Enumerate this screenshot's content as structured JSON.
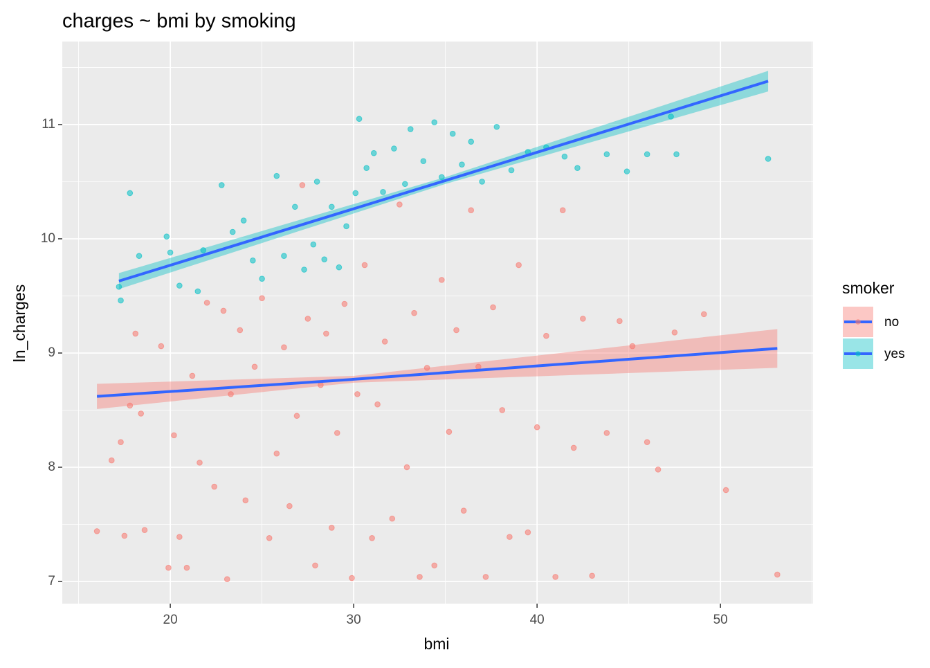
{
  "chart_data": {
    "type": "scatter",
    "title": "charges ~ bmi by smoking",
    "xlabel": "bmi",
    "ylabel": "ln_charges",
    "legend_title": "smoker",
    "legend": "right",
    "grid": true,
    "xlim": [
      14.11,
      55.05
    ],
    "xticks": [
      20,
      30,
      40,
      50
    ],
    "xminor": [
      15,
      25,
      35,
      45,
      55
    ],
    "ylim": [
      6.806,
      11.727
    ],
    "yticks": [
      7,
      8,
      9,
      10,
      11
    ],
    "yminor": [
      7.5,
      8.5,
      9.5,
      10.5,
      11.5
    ],
    "series": [
      {
        "name": "no",
        "color": "#F8766D",
        "x": [
          16,
          16.8,
          17.3,
          17.5,
          17.8,
          18.1,
          18.4,
          18.6,
          19.5,
          19.9,
          20.2,
          20.5,
          20.9,
          21.2,
          21.6,
          22,
          22.4,
          22.9,
          23.1,
          23.3,
          23.8,
          24.1,
          24.6,
          25,
          25.4,
          25.8,
          26.2,
          26.5,
          26.9,
          27.2,
          27.5,
          27.9,
          28.2,
          28.5,
          28.8,
          29.1,
          29.5,
          29.9,
          30.2,
          30.6,
          31,
          31.3,
          31.7,
          32.1,
          32.5,
          32.9,
          33.3,
          33.6,
          34,
          34.4,
          34.8,
          35.2,
          35.6,
          36,
          36.4,
          36.8,
          37.2,
          37.6,
          38.1,
          38.5,
          39,
          39.5,
          40,
          40.5,
          41,
          41.4,
          42,
          42.5,
          43,
          43.8,
          44.5,
          45.2,
          46,
          46.6,
          47.5,
          49.1,
          50.3,
          53.1
        ],
        "values": [
          7.44,
          8.06,
          8.22,
          7.4,
          8.54,
          9.17,
          8.47,
          7.45,
          9.06,
          7.12,
          8.28,
          7.39,
          7.12,
          8.8,
          8.04,
          9.44,
          7.83,
          9.37,
          7.02,
          8.64,
          9.2,
          7.71,
          8.88,
          9.48,
          7.38,
          8.12,
          9.05,
          7.66,
          8.45,
          10.47,
          9.3,
          7.14,
          8.72,
          9.17,
          7.47,
          8.3,
          9.43,
          7.03,
          8.64,
          9.77,
          7.38,
          8.55,
          9.1,
          7.55,
          10.3,
          8.0,
          9.35,
          7.04,
          8.87,
          7.14,
          9.64,
          8.31,
          9.2,
          7.62,
          10.25,
          8.88,
          7.04,
          9.4,
          8.5,
          7.39,
          9.77,
          7.43,
          8.35,
          9.15,
          7.04,
          10.25,
          8.17,
          9.3,
          7.05,
          8.3,
          9.28,
          9.06,
          8.22,
          7.98,
          9.18,
          9.34,
          7.8,
          7.06
        ]
      },
      {
        "name": "yes",
        "color": "#00BFC4",
        "x": [
          17.2,
          17.3,
          17.8,
          18.3,
          19.8,
          20,
          20.5,
          21.5,
          21.8,
          22.8,
          23.4,
          24,
          24.5,
          25,
          25.8,
          26.2,
          26.8,
          27.3,
          27.8,
          28,
          28.4,
          28.8,
          29.2,
          29.6,
          30.1,
          30.3,
          30.7,
          31.1,
          31.6,
          32.2,
          32.8,
          33.1,
          33.8,
          34.4,
          34.8,
          35.4,
          35.9,
          36.4,
          37,
          37.8,
          38.6,
          39.5,
          40.5,
          41.5,
          42.2,
          43.8,
          44.9,
          46,
          47.3,
          47.6,
          52.6
        ],
        "values": [
          9.58,
          9.46,
          10.4,
          9.85,
          10.02,
          9.88,
          9.59,
          9.54,
          9.9,
          10.47,
          10.06,
          10.16,
          9.81,
          9.65,
          10.55,
          9.85,
          10.28,
          9.73,
          9.95,
          10.5,
          9.82,
          10.28,
          9.75,
          10.11,
          10.4,
          11.05,
          10.62,
          10.75,
          10.41,
          10.79,
          10.48,
          10.96,
          10.68,
          11.02,
          10.54,
          10.92,
          10.65,
          10.85,
          10.5,
          10.98,
          10.6,
          10.76,
          10.8,
          10.72,
          10.62,
          10.74,
          10.59,
          10.74,
          11.07,
          10.74,
          10.7
        ]
      }
    ],
    "fits": [
      {
        "series": 0,
        "color": "#3366FF",
        "x": [
          16,
          30,
          53.1
        ],
        "values": [
          8.62,
          8.77,
          9.04
        ],
        "lower": [
          8.51,
          8.74,
          8.87
        ],
        "upper": [
          8.73,
          8.8,
          9.21
        ]
      },
      {
        "series": 1,
        "color": "#3366FF",
        "x": [
          17.2,
          35,
          52.6
        ],
        "values": [
          9.63,
          10.51,
          11.38
        ],
        "lower": [
          9.56,
          10.48,
          11.29
        ],
        "upper": [
          9.7,
          10.54,
          11.47
        ]
      }
    ]
  }
}
